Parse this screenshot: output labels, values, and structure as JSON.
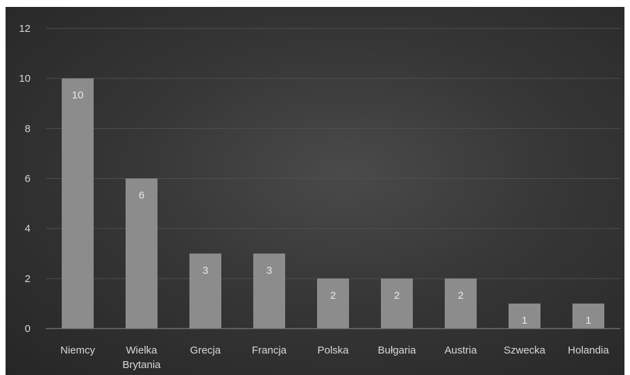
{
  "chart_data": {
    "type": "bar",
    "title": "",
    "xlabel": "",
    "ylabel": "",
    "categories": [
      "Niemcy",
      "Wielka Brytania",
      "Grecja",
      "Francja",
      "Polska",
      "Bułgaria",
      "Austria",
      "Szwecka",
      "Holandia"
    ],
    "values": [
      10,
      6,
      3,
      3,
      2,
      2,
      2,
      1,
      1
    ],
    "ylim": [
      0,
      12
    ],
    "yticks": [
      "0",
      "2",
      "4",
      "6",
      "8",
      "10",
      "12"
    ],
    "data_labels": [
      "10",
      "6",
      "3",
      "3",
      "2",
      "2",
      "2",
      "1",
      "1"
    ],
    "grid": true,
    "legend": "none",
    "colors": {
      "bar": "#8c8c8c",
      "background": "#333333",
      "grid": "#4f4f4f",
      "text": "#d6d6d6"
    }
  }
}
